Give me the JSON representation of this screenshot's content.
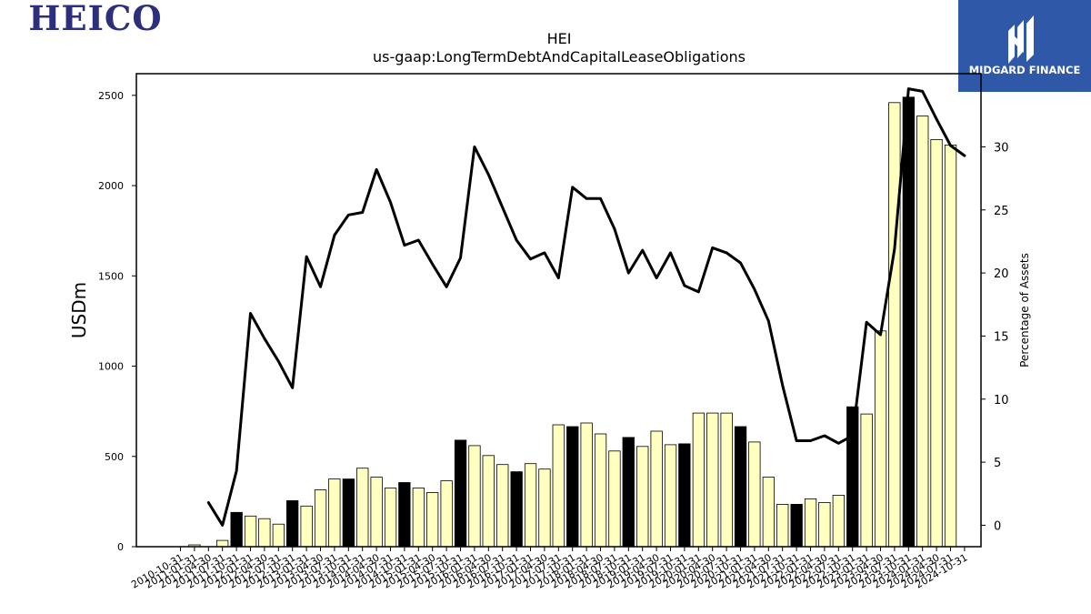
{
  "brand": {
    "left_logo_text": "HEICO",
    "right_logo_text": "MIDGARD FINANCE"
  },
  "chart_data": {
    "type": "bar",
    "title": "HEI",
    "subtitle": "us-gaap:LongTermDebtAndCapitalLeaseObligations",
    "ylabel": "USDm",
    "y2label": "Percentage of Assets",
    "ylim": [
      0,
      2620
    ],
    "y2lim": [
      -1.7,
      35.8
    ],
    "yticks": [
      0,
      500,
      1000,
      1500,
      2000,
      2500
    ],
    "y2ticks": [
      0,
      5,
      10,
      15,
      20,
      25,
      30
    ],
    "grid": false,
    "categories": [
      "2010-10-31",
      "2011-01-31",
      "2011-04-30",
      "2011-07-31",
      "2011-10-31",
      "2012-01-31",
      "2012-04-30",
      "2012-07-31",
      "2012-10-31",
      "2013-01-31",
      "2013-04-30",
      "2013-07-31",
      "2013-10-31",
      "2014-01-31",
      "2014-04-30",
      "2014-07-31",
      "2014-10-31",
      "2015-01-31",
      "2015-04-30",
      "2015-07-31",
      "2015-10-31",
      "2016-01-31",
      "2016-04-30",
      "2016-07-31",
      "2016-10-31",
      "2017-01-31",
      "2017-04-30",
      "2017-07-31",
      "2017-10-31",
      "2018-01-31",
      "2018-04-30",
      "2018-07-31",
      "2018-10-31",
      "2019-01-31",
      "2019-04-30",
      "2019-07-31",
      "2019-10-31",
      "2020-01-31",
      "2020-04-30",
      "2020-07-31",
      "2020-10-31",
      "2021-01-31",
      "2021-04-30",
      "2021-07-31",
      "2021-10-31",
      "2022-01-31",
      "2022-04-30",
      "2022-07-31",
      "2022-10-31",
      "2023-01-31",
      "2023-04-30",
      "2023-07-31",
      "2023-10-31",
      "2024-01-31",
      "2024-04-30",
      "2024-07-31",
      "2024-10-31"
    ],
    "series": [
      {
        "values": [
          0,
          10,
          0,
          35,
          190,
          170,
          155,
          125,
          255,
          225,
          315,
          375,
          375,
          435,
          385,
          325,
          355,
          325,
          300,
          365,
          590,
          560,
          505,
          455,
          415,
          460,
          430,
          675,
          665,
          685,
          625,
          530,
          605,
          555,
          640,
          565,
          570,
          740,
          740,
          740,
          665,
          580,
          385,
          235,
          235,
          265,
          245,
          285,
          775,
          735,
          1195,
          2460,
          2490,
          2385,
          2255,
          2225,
          0
        ],
        "highlight": [
          false,
          false,
          false,
          false,
          true,
          false,
          false,
          false,
          true,
          false,
          false,
          false,
          true,
          false,
          false,
          false,
          true,
          false,
          false,
          false,
          true,
          false,
          false,
          false,
          true,
          false,
          false,
          false,
          true,
          false,
          false,
          false,
          true,
          false,
          false,
          false,
          true,
          false,
          false,
          false,
          true,
          false,
          false,
          false,
          true,
          false,
          false,
          false,
          true,
          false,
          false,
          false,
          true,
          false,
          false,
          false,
          false
        ]
      },
      {
        "type": "line",
        "values": [
          null,
          null,
          1.8,
          0.0,
          4.3,
          16.8,
          14.8,
          13.0,
          10.9,
          21.3,
          18.9,
          23.0,
          24.6,
          24.8,
          28.2,
          25.6,
          22.2,
          22.6,
          20.7,
          18.9,
          21.2,
          30.0,
          27.8,
          25.2,
          22.6,
          21.1,
          21.6,
          19.6,
          26.8,
          25.9,
          25.9,
          23.5,
          20.0,
          21.8,
          19.6,
          21.6,
          19.0,
          18.5,
          22.0,
          21.6,
          20.8,
          18.7,
          16.2,
          11.1,
          6.7,
          6.7,
          7.1,
          6.5,
          7.1,
          16.1,
          15.1,
          21.9,
          34.6,
          34.4,
          32.2,
          30.1,
          29.3
        ]
      }
    ]
  }
}
